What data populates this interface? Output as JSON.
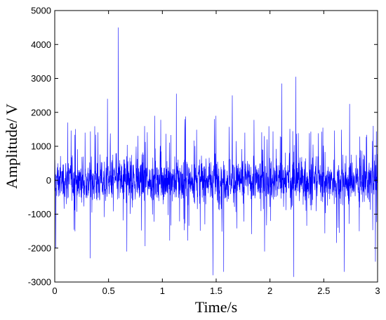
{
  "chart_data": {
    "type": "line",
    "xlabel": "Time/s",
    "ylabel": "Amplitude/ V",
    "xlim": [
      0,
      3
    ],
    "ylim": [
      -3000,
      5000
    ],
    "xticks": [
      0,
      0.5,
      1,
      1.5,
      2,
      2.5,
      3
    ],
    "xtick_labels": [
      "0",
      "0.5",
      "1",
      "1.5",
      "2",
      "2.5",
      "3"
    ],
    "yticks": [
      -3000,
      -2000,
      -1000,
      0,
      1000,
      2000,
      3000,
      4000,
      5000
    ],
    "ytick_labels": [
      "-3000",
      "-2000",
      "-1000",
      "0",
      "1000",
      "2000",
      "3000",
      "4000",
      "5000"
    ],
    "grid": false,
    "series": [
      {
        "color": "#0000ff",
        "peaks": [
          {
            "x": 0.01,
            "y": -2000
          },
          {
            "x": 0.12,
            "y": 1700
          },
          {
            "x": 0.33,
            "y": -2300
          },
          {
            "x": 0.49,
            "y": 2400
          },
          {
            "x": 0.59,
            "y": 4500
          },
          {
            "x": 0.67,
            "y": -2100
          },
          {
            "x": 0.93,
            "y": 1900
          },
          {
            "x": 1.13,
            "y": 2550
          },
          {
            "x": 1.21,
            "y": 1800
          },
          {
            "x": 1.47,
            "y": -2800
          },
          {
            "x": 1.57,
            "y": -2700
          },
          {
            "x": 1.65,
            "y": 2500
          },
          {
            "x": 1.95,
            "y": -2100
          },
          {
            "x": 2.11,
            "y": 2850
          },
          {
            "x": 2.24,
            "y": 3050
          },
          {
            "x": 2.22,
            "y": -2850
          },
          {
            "x": 2.69,
            "y": -2700
          },
          {
            "x": 2.74,
            "y": 2250
          },
          {
            "x": 2.96,
            "y": 1600
          },
          {
            "x": 2.98,
            "y": -2400
          }
        ]
      }
    ]
  }
}
